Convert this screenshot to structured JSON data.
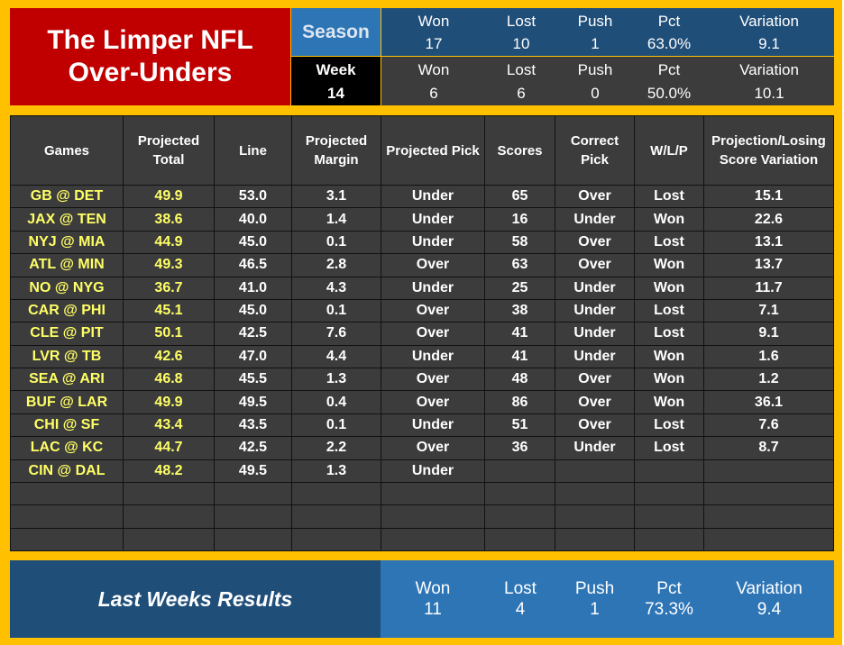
{
  "header": {
    "title_line1": "The Limper NFL",
    "title_line2": "Over-Unders",
    "season_label": "Season",
    "week_label": "Week",
    "week_number": "14",
    "stat_labels": [
      "Won",
      "Lost",
      "Push",
      "Pct",
      "Variation"
    ],
    "season_values": [
      "17",
      "10",
      "1",
      "63.0%",
      "9.1"
    ],
    "week_values": [
      "6",
      "6",
      "0",
      "50.0%",
      "10.1"
    ]
  },
  "table": {
    "headers": [
      "Games",
      "Projected Total",
      "Line",
      "Projected Margin",
      "Projected Pick",
      "Scores",
      "Correct Pick",
      "W/L/P",
      "Projection/Losing Score Variation"
    ],
    "rows": [
      [
        "GB @ DET",
        "49.9",
        "53.0",
        "3.1",
        "Under",
        "65",
        "Over",
        "Lost",
        "15.1"
      ],
      [
        "JAX @ TEN",
        "38.6",
        "40.0",
        "1.4",
        "Under",
        "16",
        "Under",
        "Won",
        "22.6"
      ],
      [
        "NYJ @ MIA",
        "44.9",
        "45.0",
        "0.1",
        "Under",
        "58",
        "Over",
        "Lost",
        "13.1"
      ],
      [
        "ATL @ MIN",
        "49.3",
        "46.5",
        "2.8",
        "Over",
        "63",
        "Over",
        "Won",
        "13.7"
      ],
      [
        "NO @ NYG",
        "36.7",
        "41.0",
        "4.3",
        "Under",
        "25",
        "Under",
        "Won",
        "11.7"
      ],
      [
        "CAR @ PHI",
        "45.1",
        "45.0",
        "0.1",
        "Over",
        "38",
        "Under",
        "Lost",
        "7.1"
      ],
      [
        "CLE @ PIT",
        "50.1",
        "42.5",
        "7.6",
        "Over",
        "41",
        "Under",
        "Lost",
        "9.1"
      ],
      [
        "LVR @ TB",
        "42.6",
        "47.0",
        "4.4",
        "Under",
        "41",
        "Under",
        "Won",
        "1.6"
      ],
      [
        "SEA @ ARI",
        "46.8",
        "45.5",
        "1.3",
        "Over",
        "48",
        "Over",
        "Won",
        "1.2"
      ],
      [
        "BUF @ LAR",
        "49.9",
        "49.5",
        "0.4",
        "Over",
        "86",
        "Over",
        "Won",
        "36.1"
      ],
      [
        "CHI @ SF",
        "43.4",
        "43.5",
        "0.1",
        "Under",
        "51",
        "Over",
        "Lost",
        "7.6"
      ],
      [
        "LAC @ KC",
        "44.7",
        "42.5",
        "2.2",
        "Over",
        "36",
        "Under",
        "Lost",
        "8.7"
      ],
      [
        "CIN @ DAL",
        "48.2",
        "49.5",
        "1.3",
        "Under",
        "",
        "",
        "",
        ""
      ],
      [
        "",
        "",
        "",
        "",
        "",
        "",
        "",
        "",
        ""
      ],
      [
        "",
        "",
        "",
        "",
        "",
        "",
        "",
        "",
        ""
      ],
      [
        "",
        "",
        "",
        "",
        "",
        "",
        "",
        "",
        ""
      ]
    ]
  },
  "footer": {
    "title": "Last Weeks Results",
    "labels": [
      "Won",
      "Lost",
      "Push",
      "Pct",
      "Variation"
    ],
    "values": [
      "11",
      "4",
      "1",
      "73.3%",
      "9.4"
    ]
  },
  "colors": {
    "frame": "#ffc000",
    "title_bg": "#c00000",
    "season_bg": "#1f4e79",
    "season_label_bg": "#2e75b6",
    "week_bg": "#3c3c3c",
    "table_bg": "#3c3c3c",
    "game_text": "#ffff66"
  }
}
